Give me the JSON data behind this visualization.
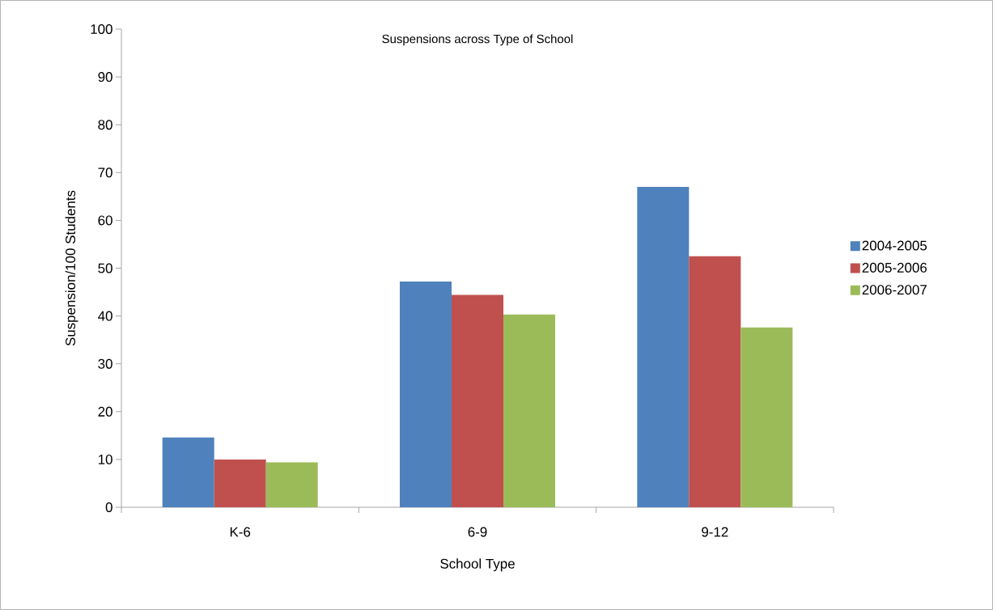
{
  "chart_data": {
    "type": "bar",
    "title": "Suspensions across Type of School",
    "xlabel": "School Type",
    "ylabel": "Suspension/100 Students",
    "categories": [
      "K-6",
      "6-9",
      "9-12"
    ],
    "series": [
      {
        "name": "2004-2005",
        "color": "#4f81bd",
        "values": [
          14.6,
          47.2,
          67.0
        ]
      },
      {
        "name": "2005-2006",
        "color": "#c0504d",
        "values": [
          10.0,
          44.4,
          52.5
        ]
      },
      {
        "name": "2006-2007",
        "color": "#9bbb59",
        "values": [
          9.4,
          40.3,
          37.6
        ]
      }
    ],
    "ylim": [
      0,
      100
    ],
    "yticks": [
      0,
      10,
      20,
      30,
      40,
      50,
      60,
      70,
      80,
      90,
      100
    ],
    "legend": "right"
  }
}
